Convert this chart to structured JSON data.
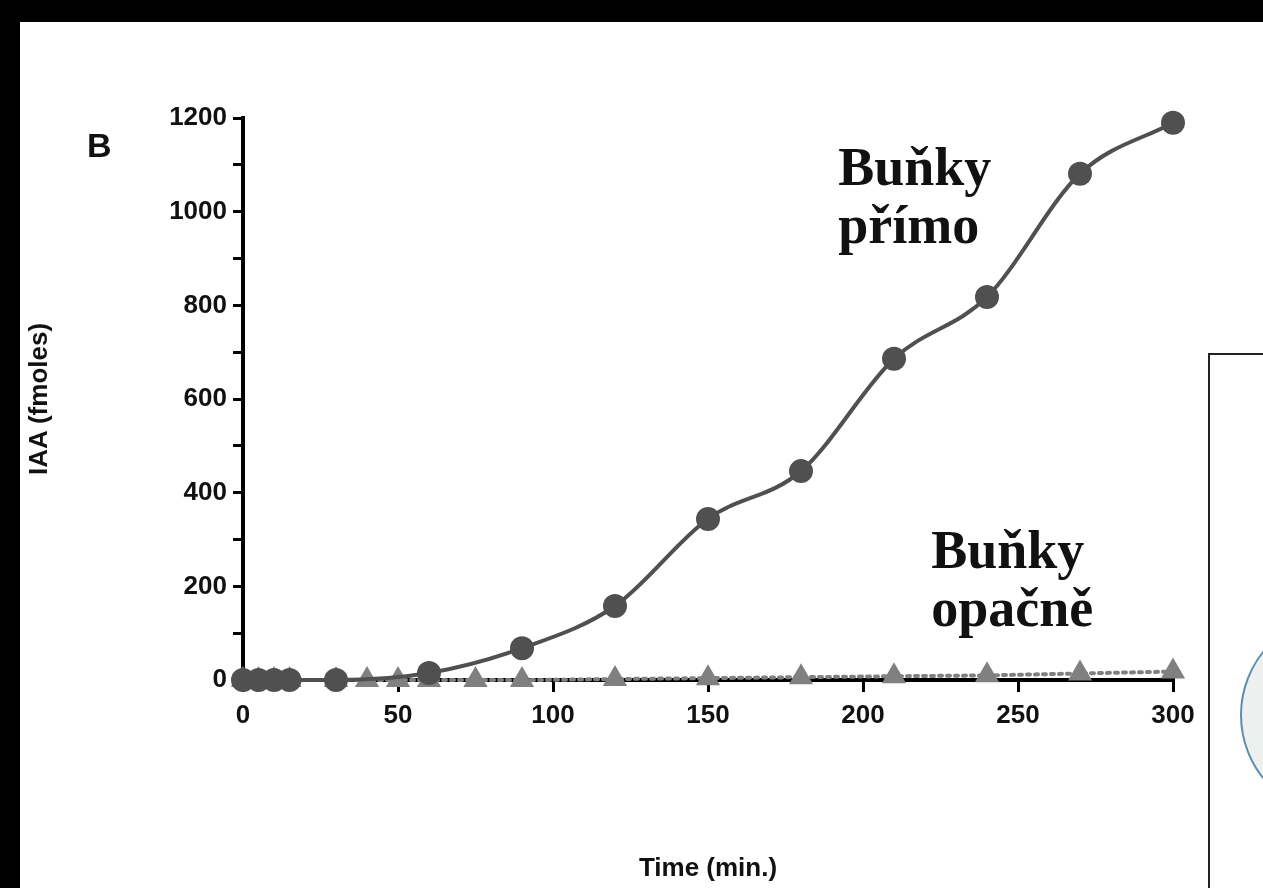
{
  "chart_data": {
    "type": "line",
    "xlabel": "Time (min.)",
    "ylabel": "IAA (fmoles)",
    "annotations": [
      "B"
    ],
    "xlim": [
      0,
      300
    ],
    "xticks": [
      0,
      50,
      100,
      150,
      200,
      250,
      300
    ],
    "ylim": [
      0,
      1200
    ],
    "yticks": [
      0,
      {
        "value": 100,
        "label": null
      },
      200,
      {
        "value": 300,
        "label": null
      },
      400,
      {
        "value": 500,
        "label": null
      },
      600,
      {
        "value": 700,
        "label": null
      },
      800,
      {
        "value": 900,
        "label": null
      },
      1000,
      {
        "value": 1100,
        "label": null
      },
      1200
    ],
    "grid": false,
    "legend": false,
    "series": [
      {
        "name": "Buňky přímo",
        "color": "#505050",
        "marker": "circle",
        "line_style": "solid",
        "x": [
          0,
          5,
          10,
          15,
          30,
          60,
          90,
          120,
          150,
          180,
          210,
          240,
          270,
          300
        ],
        "values": [
          0,
          0,
          0,
          0,
          0,
          15,
          68,
          158,
          344,
          446,
          686,
          818,
          1081,
          1190
        ]
      },
      {
        "name": "Buňky opačně",
        "color": "#808080",
        "marker": "triangle",
        "line_style": "dotted",
        "x": [
          0,
          5,
          10,
          15,
          30,
          40,
          50,
          60,
          75,
          90,
          120,
          150,
          180,
          210,
          240,
          270,
          300
        ],
        "values": [
          0,
          0,
          0,
          0,
          0,
          0,
          0,
          0,
          0,
          0,
          2,
          4,
          6,
          8,
          10,
          14,
          18
        ]
      }
    ]
  }
}
